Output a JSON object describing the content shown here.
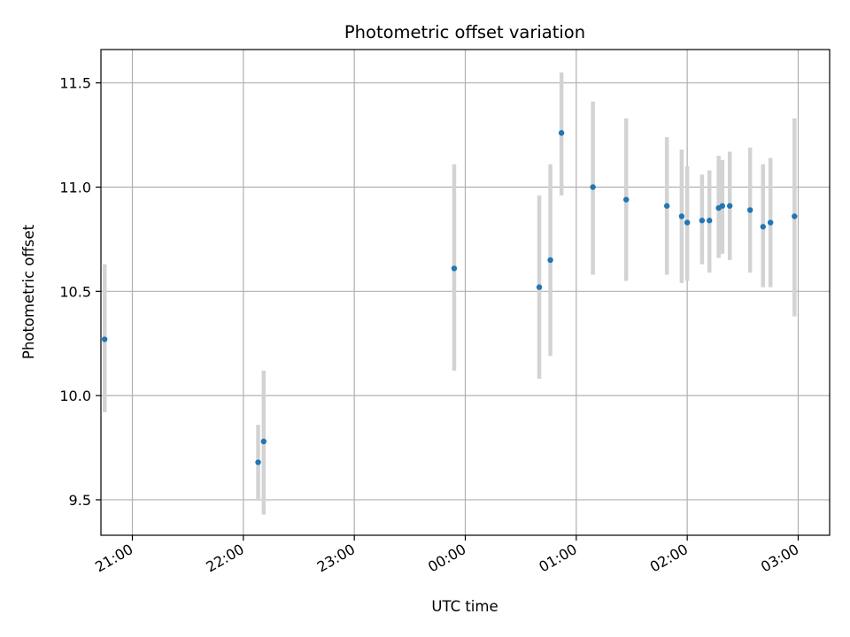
{
  "chart_data": {
    "type": "scatter",
    "title": "Photometric offset variation",
    "xlabel": "UTC time",
    "ylabel": "Photometric offset",
    "x_unit": "UTC time (HH:MM)",
    "xlim": [
      "20:43",
      "03:17"
    ],
    "ylim": [
      9.33,
      11.66
    ],
    "x_ticks": [
      "21:00",
      "22:00",
      "23:00",
      "00:00",
      "01:00",
      "02:00",
      "03:00"
    ],
    "y_ticks": [
      9.5,
      10.0,
      10.5,
      11.0,
      11.5
    ],
    "grid": true,
    "marker_color": "#1f77b4",
    "errorbar_color": "#d3d3d3",
    "points": [
      {
        "time": "20:45",
        "offset": 10.27,
        "low": 9.92,
        "high": 10.63
      },
      {
        "time": "22:08",
        "offset": 9.68,
        "low": 9.5,
        "high": 9.86
      },
      {
        "time": "22:11",
        "offset": 9.78,
        "low": 9.43,
        "high": 10.12
      },
      {
        "time": "23:54",
        "offset": 10.61,
        "low": 10.12,
        "high": 11.11
      },
      {
        "time": "00:40",
        "offset": 10.52,
        "low": 10.08,
        "high": 10.96
      },
      {
        "time": "00:46",
        "offset": 10.65,
        "low": 10.19,
        "high": 11.11
      },
      {
        "time": "00:52",
        "offset": 11.26,
        "low": 10.96,
        "high": 11.55
      },
      {
        "time": "01:09",
        "offset": 11.0,
        "low": 10.58,
        "high": 11.41
      },
      {
        "time": "01:27",
        "offset": 10.94,
        "low": 10.55,
        "high": 11.33
      },
      {
        "time": "01:49",
        "offset": 10.91,
        "low": 10.58,
        "high": 11.24
      },
      {
        "time": "01:57",
        "offset": 10.86,
        "low": 10.54,
        "high": 11.18
      },
      {
        "time": "02:00",
        "offset": 10.83,
        "low": 10.55,
        "high": 11.1
      },
      {
        "time": "02:08",
        "offset": 10.84,
        "low": 10.63,
        "high": 11.06
      },
      {
        "time": "02:12",
        "offset": 10.84,
        "low": 10.59,
        "high": 11.08
      },
      {
        "time": "02:17",
        "offset": 10.9,
        "low": 10.66,
        "high": 11.15
      },
      {
        "time": "02:19",
        "offset": 10.91,
        "low": 10.68,
        "high": 11.13
      },
      {
        "time": "02:23",
        "offset": 10.91,
        "low": 10.65,
        "high": 11.17
      },
      {
        "time": "02:34",
        "offset": 10.89,
        "low": 10.59,
        "high": 11.19
      },
      {
        "time": "02:41",
        "offset": 10.81,
        "low": 10.52,
        "high": 11.11
      },
      {
        "time": "02:45",
        "offset": 10.83,
        "low": 10.52,
        "high": 11.14
      },
      {
        "time": "02:58",
        "offset": 10.86,
        "low": 10.38,
        "high": 11.33
      }
    ]
  }
}
